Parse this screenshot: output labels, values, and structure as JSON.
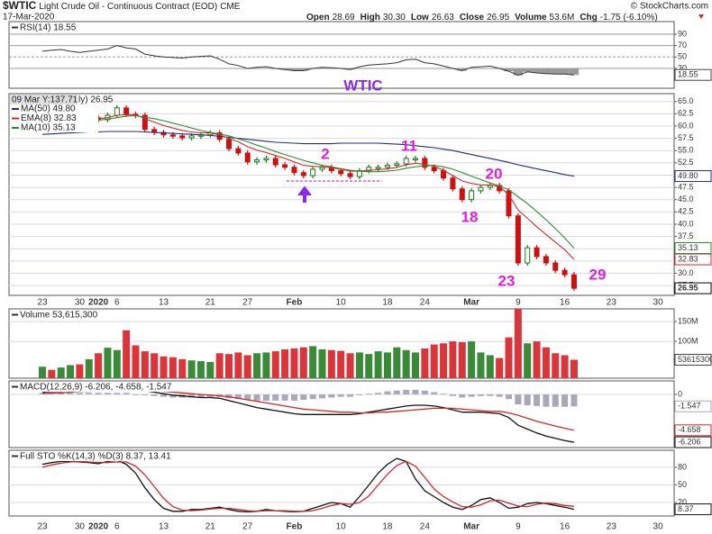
{
  "header": {
    "symbol": "$WTIC",
    "name": "Light Crude Oil - Continuous Contract (EOD)",
    "exchange": "CME",
    "date": "17-Mar-2020",
    "stats": [
      {
        "label": "Open",
        "value": "28.69"
      },
      {
        "label": "High",
        "value": "30.30"
      },
      {
        "label": "Low",
        "value": "26.63"
      },
      {
        "label": "Close",
        "value": "26.95"
      },
      {
        "label": "Volume",
        "value": "53.6M"
      },
      {
        "label": "Chg",
        "value": "-1.75 (-6.10%)"
      }
    ],
    "source": "© StockCharts.com"
  },
  "chart_data": [
    {
      "type": "stock",
      "cursor_label": "09 Mar Y:137.71",
      "legend_title": "ly) 26.95",
      "last_label": "26.95",
      "up_color": "#1a7a1a",
      "down_color": "#cc1111",
      "categories": [
        "23",
        null,
        null,
        null,
        "30",
        null,
        "2020",
        null,
        "6",
        null,
        null,
        null,
        null,
        "13",
        null,
        null,
        null,
        null,
        "21",
        null,
        null,
        null,
        "27",
        null,
        null,
        null,
        null,
        "Feb",
        null,
        null,
        null,
        null,
        "10",
        null,
        null,
        null,
        null,
        "18",
        null,
        null,
        null,
        "24",
        null,
        null,
        null,
        null,
        "Mar",
        null,
        null,
        null,
        null,
        "9",
        null,
        null,
        null,
        null,
        "16",
        null,
        null,
        null,
        null,
        "23",
        null,
        null,
        null,
        null,
        "30"
      ],
      "values": [
        61.5,
        61.0,
        61.8,
        62.0,
        61.7,
        61.7,
        61.3,
        62.2,
        63.7,
        62.4,
        62.2,
        59.3,
        58.7,
        58.2,
        58.0,
        57.6,
        58.0,
        58.2,
        58.6,
        57.3,
        55.4,
        54.5,
        52.7,
        53.1,
        53.4,
        52.1,
        51.6,
        50.5,
        49.9,
        51.2,
        51.6,
        50.9,
        50.3,
        49.7,
        50.9,
        51.6,
        51.6,
        52.0,
        52.3,
        53.4,
        53.4,
        51.6,
        50.9,
        49.4,
        47.2,
        45.0,
        46.8,
        47.5,
        47.9,
        46.8,
        41.7,
        32.1,
        35.2,
        33.4,
        32.1,
        30.6,
        29.7,
        26.95,
        null,
        null,
        null,
        null,
        null,
        null,
        null,
        null,
        null
      ],
      "series": [
        {
          "name": "MA(50) 49.80",
          "color": "#1f2a8a",
          "last_label": "49.80",
          "values": [
            58.3,
            58.4,
            58.5,
            58.6,
            58.7,
            58.8,
            58.8,
            58.9,
            58.9,
            58.9,
            58.9,
            58.8,
            58.7,
            58.6,
            58.5,
            58.4,
            58.3,
            58.2,
            58.1,
            57.9,
            57.7,
            57.5,
            57.3,
            57.1,
            56.9,
            56.7,
            56.6,
            56.5,
            56.4,
            56.4,
            56.4,
            56.4,
            56.5,
            56.5,
            56.5,
            56.5,
            56.5,
            56.4,
            56.3,
            56.2,
            56.0,
            55.8,
            55.6,
            55.3,
            55.0,
            54.6,
            54.2,
            53.8,
            53.4,
            53.0,
            52.6,
            52.1,
            51.7,
            51.3,
            50.9,
            50.5,
            50.1,
            49.8,
            null,
            null,
            null,
            null,
            null,
            null,
            null,
            null,
            null
          ]
        },
        {
          "name": "EMA(8) 32.83",
          "color": "#d42a2a",
          "last_label": "32.83",
          "values": [
            61.0,
            61.0,
            61.2,
            61.4,
            61.5,
            61.6,
            61.5,
            61.7,
            62.2,
            62.3,
            62.3,
            61.5,
            60.8,
            60.1,
            59.6,
            59.1,
            58.8,
            58.6,
            58.6,
            58.2,
            57.5,
            56.8,
            55.8,
            55.1,
            54.6,
            54.0,
            53.4,
            52.7,
            52.0,
            51.8,
            51.7,
            51.5,
            51.2,
            50.8,
            50.8,
            51.0,
            51.1,
            51.3,
            51.6,
            52.1,
            52.4,
            52.2,
            51.8,
            51.0,
            49.9,
            48.8,
            48.3,
            48.0,
            48.0,
            47.7,
            46.0,
            42.9,
            41.2,
            39.5,
            37.9,
            36.3,
            34.8,
            32.83,
            null,
            null,
            null,
            null,
            null,
            null,
            null,
            null,
            null
          ]
        },
        {
          "name": "MA(10) 35.13",
          "color": "#2e8b2e",
          "last_label": "35.13",
          "values": [
            60.6,
            60.7,
            60.8,
            60.9,
            61.0,
            61.1,
            61.2,
            61.4,
            61.7,
            62.0,
            62.1,
            61.8,
            61.5,
            61.1,
            60.6,
            60.1,
            59.6,
            59.1,
            58.7,
            58.4,
            58.0,
            57.4,
            56.8,
            56.1,
            55.5,
            54.8,
            54.2,
            53.6,
            53.0,
            52.5,
            52.0,
            51.7,
            51.3,
            51.0,
            50.8,
            50.7,
            50.7,
            50.8,
            51.0,
            51.4,
            51.7,
            51.9,
            52.0,
            51.7,
            51.2,
            50.5,
            49.8,
            49.1,
            48.4,
            47.8,
            47.0,
            45.6,
            44.2,
            42.6,
            40.9,
            39.1,
            37.2,
            35.13,
            null,
            null,
            null,
            null,
            null,
            null,
            null,
            null,
            null
          ]
        }
      ],
      "ylim": [
        25.5,
        66.6
      ],
      "yticks": [
        {
          "value": 27.5,
          "label": "27.5"
        },
        {
          "value": 30,
          "label": "30.0"
        },
        {
          "value": 32.5,
          "label": "32.5"
        },
        {
          "value": 35,
          "label": "35.0"
        },
        {
          "value": 37.5,
          "label": "37.5"
        },
        {
          "value": 40,
          "label": "40.0"
        },
        {
          "value": 42.5,
          "label": "42.5"
        },
        {
          "value": 45,
          "label": "45.0"
        },
        {
          "value": 47.5,
          "label": "47.5"
        },
        {
          "value": 50,
          "label": "50.0"
        },
        {
          "value": 52.5,
          "label": "52.5"
        },
        {
          "value": 55,
          "label": "55.0"
        },
        {
          "value": 57.5,
          "label": "57.5"
        },
        {
          "value": 60,
          "label": "60.0"
        },
        {
          "value": 62.5,
          "label": "62.5"
        },
        {
          "value": 65,
          "label": "65.0"
        }
      ],
      "grid": true,
      "annotations": [
        "2",
        "11",
        "20",
        "18",
        "23",
        "29",
        "WTIC"
      ]
    },
    {
      "type": "line",
      "title": "RSI(14) 18.55",
      "color": "#333333",
      "shade_color": "#9a9a9a",
      "shade_below": 30,
      "last_label": "18.55",
      "values": [
        60,
        62,
        63,
        60,
        58,
        60,
        62,
        64,
        70,
        66,
        64,
        55,
        52,
        50,
        49,
        48,
        50,
        51,
        52,
        46,
        38,
        35,
        30,
        32,
        33,
        30,
        28,
        26,
        26,
        30,
        32,
        31,
        30,
        28,
        33,
        36,
        37,
        38,
        40,
        45,
        46,
        40,
        38,
        34,
        30,
        26,
        32,
        33,
        34,
        30,
        25,
        18,
        24,
        22,
        21,
        20,
        20,
        18.55,
        null,
        null,
        null,
        null,
        null,
        null,
        null,
        null,
        null
      ],
      "ylim": [
        -4.8,
        112
      ],
      "yticks": [
        30,
        50,
        70,
        90
      ],
      "grid": true
    },
    {
      "type": "bar",
      "title": "Volume 53,615,300",
      "last_label": "53615300",
      "up_color": "#3a8a3a",
      "down_color": "#d9353a",
      "values": [
        36000000,
        28000000,
        34000000,
        40000000,
        42000000,
        55000000,
        70000000,
        84000000,
        78000000,
        128000000,
        90000000,
        75000000,
        70000000,
        62000000,
        60000000,
        55000000,
        52000000,
        50000000,
        48000000,
        70000000,
        68000000,
        72000000,
        65000000,
        70000000,
        72000000,
        75000000,
        80000000,
        82000000,
        85000000,
        88000000,
        80000000,
        78000000,
        76000000,
        70000000,
        72000000,
        68000000,
        75000000,
        72000000,
        85000000,
        78000000,
        72000000,
        82000000,
        92000000,
        95000000,
        100000000,
        98000000,
        100000000,
        72000000,
        65000000,
        58000000,
        110000000,
        182000000,
        95000000,
        100000000,
        85000000,
        70000000,
        65000000,
        53615300,
        null,
        null,
        null,
        null,
        null,
        null,
        null,
        null,
        null
      ],
      "ylim": [
        7000000,
        182000000
      ],
      "yticks": [
        {
          "value": 100000000,
          "label": "100M"
        },
        {
          "value": 150000000,
          "label": "150M"
        }
      ],
      "grid": true
    },
    {
      "type": "line",
      "title": "MACD(12,26,9) -6.206, -4.658, -1.547",
      "series": [
        {
          "color": "#111111",
          "last_label": "-6.206",
          "values": [
            0.3,
            0.4,
            0.4,
            0.5,
            0.6,
            0.6,
            0.7,
            0.7,
            0.8,
            0.8,
            0.7,
            0.5,
            0.3,
            0.1,
            -0.1,
            -0.2,
            -0.3,
            -0.4,
            -0.4,
            -0.5,
            -0.8,
            -1.1,
            -1.4,
            -1.7,
            -1.9,
            -2.1,
            -2.3,
            -2.5,
            -2.6,
            -2.6,
            -2.6,
            -2.6,
            -2.6,
            -2.6,
            -2.5,
            -2.3,
            -2.1,
            -1.9,
            -1.7,
            -1.5,
            -1.4,
            -1.4,
            -1.5,
            -1.7,
            -2.0,
            -2.3,
            -2.3,
            -2.3,
            -2.4,
            -2.5,
            -3.0,
            -4.0,
            -4.5,
            -5.0,
            -5.4,
            -5.7,
            -6.0,
            -6.206,
            null,
            null,
            null,
            null,
            null,
            null,
            null,
            null,
            null
          ]
        },
        {
          "color": "#cc2a2a",
          "last_label": "-4.658",
          "values": [
            0.1,
            0.2,
            0.2,
            0.3,
            0.4,
            0.4,
            0.5,
            0.5,
            0.6,
            0.6,
            0.7,
            0.6,
            0.5,
            0.4,
            0.3,
            0.2,
            0.1,
            0.0,
            -0.1,
            -0.2,
            -0.3,
            -0.5,
            -0.7,
            -0.9,
            -1.1,
            -1.3,
            -1.5,
            -1.7,
            -1.9,
            -2.0,
            -2.1,
            -2.2,
            -2.3,
            -2.3,
            -2.4,
            -2.4,
            -2.3,
            -2.3,
            -2.2,
            -2.1,
            -2.0,
            -1.9,
            -1.8,
            -1.8,
            -1.8,
            -1.9,
            -2.0,
            -2.1,
            -2.2,
            -2.2,
            -2.4,
            -2.7,
            -3.1,
            -3.5,
            -3.8,
            -4.1,
            -4.4,
            -4.658,
            null,
            null,
            null,
            null,
            null,
            null,
            null,
            null,
            null
          ]
        },
        {
          "color": "#a8a8b8",
          "style": "bar",
          "last_label": "-1.547",
          "values": [
            0.2,
            0.2,
            0.2,
            0.2,
            0.2,
            0.2,
            0.2,
            0.2,
            0.2,
            0.2,
            0.0,
            -0.1,
            -0.2,
            -0.3,
            -0.4,
            -0.4,
            -0.4,
            -0.4,
            -0.3,
            -0.3,
            -0.5,
            -0.6,
            -0.7,
            -0.8,
            -0.8,
            -0.8,
            -0.8,
            -0.8,
            -0.7,
            -0.6,
            -0.5,
            -0.4,
            -0.3,
            -0.3,
            -0.1,
            0.1,
            0.2,
            0.4,
            0.5,
            0.6,
            0.6,
            0.5,
            0.3,
            0.1,
            -0.2,
            -0.4,
            -0.3,
            -0.2,
            -0.2,
            -0.3,
            -0.6,
            -1.3,
            -1.4,
            -1.5,
            -1.6,
            -1.6,
            -1.6,
            -1.547,
            null,
            null,
            null,
            null,
            null,
            null,
            null,
            null,
            null
          ]
        }
      ],
      "ylim": [
        -6.9,
        1.76
      ],
      "yticks": [
        0
      ],
      "grid": true
    },
    {
      "type": "line",
      "title": "Full STO %K(14,3) %D(3) 8.37, 13.41",
      "series": [
        {
          "color": "#111111",
          "last_label": "8.37",
          "values": [
            85,
            88,
            90,
            90,
            89,
            88,
            86,
            90,
            92,
            85,
            70,
            45,
            25,
            10,
            5,
            5,
            8,
            8,
            10,
            12,
            8,
            5,
            4,
            5,
            8,
            6,
            5,
            4,
            5,
            10,
            15,
            20,
            18,
            12,
            30,
            50,
            70,
            85,
            95,
            90,
            60,
            40,
            30,
            20,
            12,
            8,
            15,
            25,
            28,
            20,
            10,
            12,
            18,
            20,
            18,
            15,
            12,
            8.37,
            null,
            null,
            null,
            null,
            null,
            null,
            null,
            null,
            null
          ]
        },
        {
          "color": "#cc2a2a",
          "values": [
            80,
            84,
            87,
            89,
            90,
            89,
            88,
            88,
            89,
            89,
            82,
            67,
            47,
            27,
            13,
            7,
            6,
            7,
            9,
            10,
            10,
            8,
            6,
            5,
            6,
            6,
            6,
            5,
            5,
            6,
            10,
            15,
            18,
            17,
            20,
            31,
            50,
            68,
            83,
            90,
            82,
            63,
            43,
            30,
            21,
            13,
            12,
            16,
            23,
            24,
            19,
            14,
            13,
            17,
            19,
            18,
            15,
            13.41,
            null,
            null,
            null,
            null,
            null,
            null,
            null,
            null,
            null
          ]
        }
      ],
      "ylim": [
        -3,
        109
      ],
      "yticks": [
        20,
        50,
        80
      ],
      "grid": true
    }
  ]
}
